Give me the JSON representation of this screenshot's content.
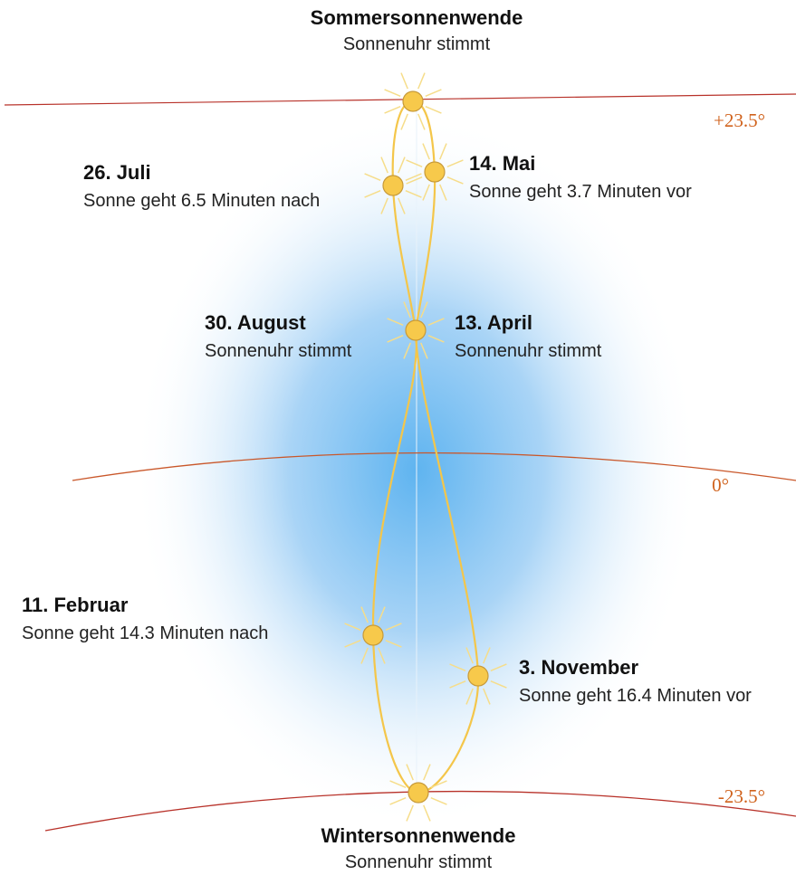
{
  "labels": [
    {
      "title": "Sommersonnenwende",
      "subtitle": "Sonnenuhr stimmt"
    },
    {
      "title": "26. Juli",
      "subtitle": "Sonne geht 6.5 Minuten nach"
    },
    {
      "title": "14. Mai",
      "subtitle": "Sonne geht 3.7 Minuten vor"
    },
    {
      "title": "30. August",
      "subtitle": "Sonnenuhr stimmt"
    },
    {
      "title": "13. April",
      "subtitle": "Sonnenuhr stimmt"
    },
    {
      "title": "11. Februar",
      "subtitle": "Sonne geht 14.3 Minuten nach"
    },
    {
      "title": "3. November",
      "subtitle": "Sonne geht 16.4 Minuten vor"
    },
    {
      "title": "Wintersonnenwende",
      "subtitle": "Sonnenuhr stimmt"
    }
  ],
  "degrees": [
    "+23.5°",
    "0°",
    "-23.5°"
  ]
}
